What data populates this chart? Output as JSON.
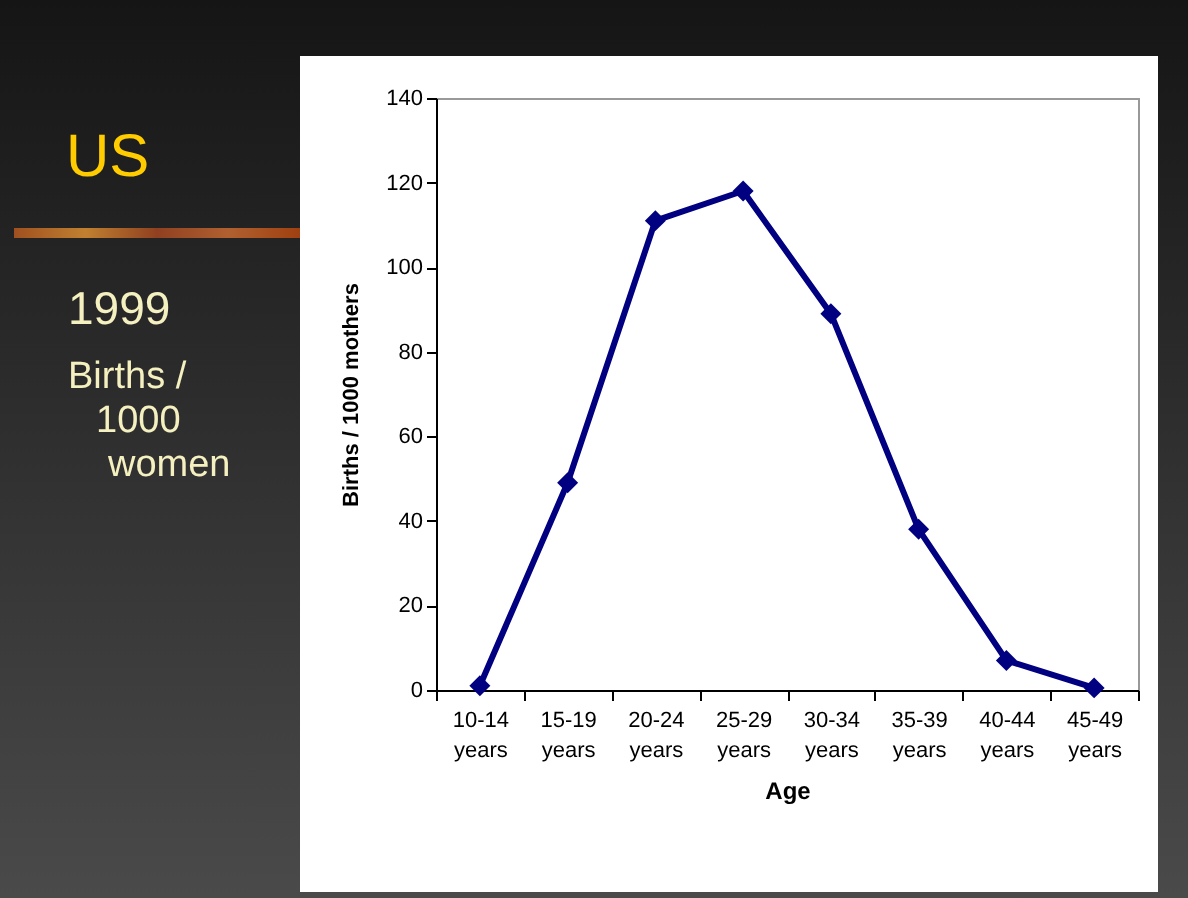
{
  "chart_data": {
    "type": "line",
    "title": "US",
    "subtitle": "1999",
    "annotations": [
      "Births / 1000 women"
    ],
    "xlabel": "Age",
    "ylabel": "Births / 1000 mothers",
    "categories": [
      "10-14 years",
      "15-19 years",
      "20-24 years",
      "25-29 years",
      "30-34 years",
      "35-39 years",
      "40-44 years",
      "45-49 years"
    ],
    "series": [
      {
        "color": "#000080",
        "values": [
          1,
          49,
          111,
          118,
          89,
          38,
          7,
          0.5
        ]
      }
    ],
    "ylim": [
      0,
      140
    ],
    "yticks": [
      0,
      20,
      40,
      60,
      80,
      100,
      120,
      140
    ],
    "grid": false,
    "marker": "diamond",
    "line_style": "solid"
  }
}
